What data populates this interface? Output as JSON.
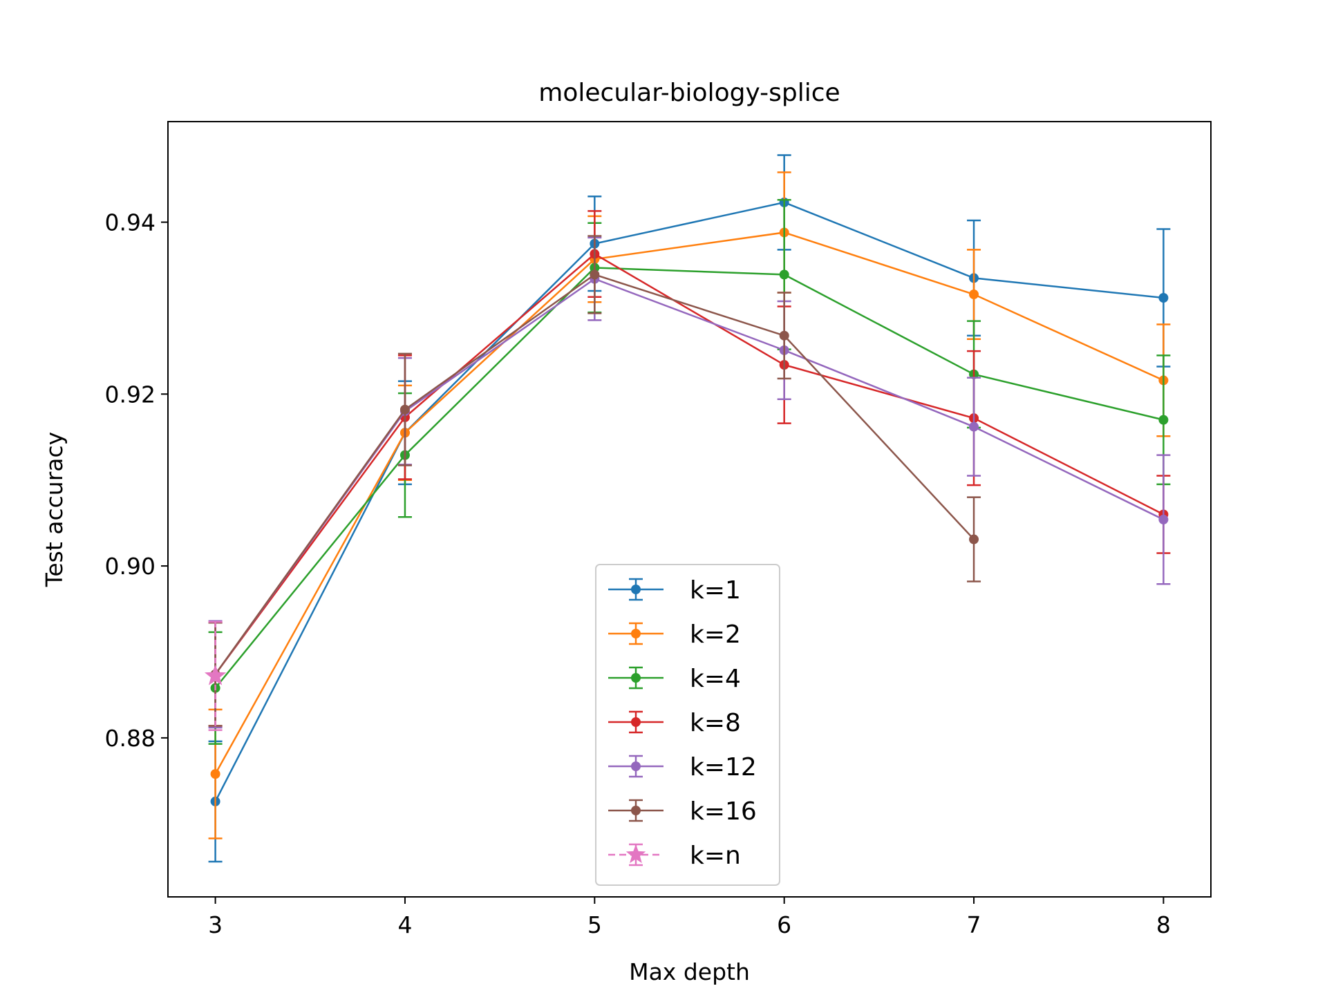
{
  "chart_data": {
    "type": "line",
    "title": "molecular-biology-splice",
    "xlabel": "Max depth",
    "ylabel": "Test accuracy",
    "x": [
      3,
      4,
      5,
      6,
      7,
      8
    ],
    "x_tick_labels": [
      "3",
      "4",
      "5",
      "6",
      "7",
      "8"
    ],
    "xlim": [
      2.75,
      8.25
    ],
    "ylim": [
      0.8615,
      0.9517
    ],
    "y_ticks": [
      0.88,
      0.9,
      0.92,
      0.94
    ],
    "y_tick_labels": [
      "0.88",
      "0.90",
      "0.92",
      "0.94"
    ],
    "grid": false,
    "legend_position": "bottom-center",
    "series": [
      {
        "name": "k=1",
        "color": "#1f77b4",
        "marker": "circle",
        "dashed": false,
        "values": [
          0.8726,
          0.9155,
          0.9375,
          0.9423,
          0.9335,
          0.9312
        ],
        "errors": [
          0.007,
          0.006,
          0.0055,
          0.0055,
          0.0067,
          0.008
        ]
      },
      {
        "name": "k=2",
        "color": "#ff7f0e",
        "marker": "circle",
        "dashed": false,
        "values": [
          0.8758,
          0.9155,
          0.9357,
          0.9388,
          0.9316,
          0.9216
        ],
        "errors": [
          0.0075,
          0.0055,
          0.005,
          0.007,
          0.0052,
          0.0065
        ]
      },
      {
        "name": "k=4",
        "color": "#2ca02c",
        "marker": "circle",
        "dashed": false,
        "values": [
          0.8858,
          0.9129,
          0.9347,
          0.9339,
          0.9223,
          0.917
        ],
        "errors": [
          0.0065,
          0.0072,
          0.0052,
          0.0087,
          0.0062,
          0.0075
        ]
      },
      {
        "name": "k=8",
        "color": "#d62728",
        "marker": "circle",
        "dashed": false,
        "values": [
          0.8874,
          0.9173,
          0.9363,
          0.9234,
          0.9172,
          0.906
        ],
        "errors": [
          0.006,
          0.0072,
          0.005,
          0.0068,
          0.0078,
          0.0045
        ]
      },
      {
        "name": "k=12",
        "color": "#9467bd",
        "marker": "circle",
        "dashed": false,
        "values": [
          0.8874,
          0.918,
          0.9334,
          0.9251,
          0.9162,
          0.9054
        ],
        "errors": [
          0.0062,
          0.0062,
          0.0048,
          0.0057,
          0.0057,
          0.0075
        ]
      },
      {
        "name": "k=16",
        "color": "#8c564b",
        "marker": "circle",
        "dashed": false,
        "values": [
          0.8874,
          0.9182,
          0.9339,
          0.9268,
          0.9031,
          null
        ],
        "errors": [
          0.006,
          0.0065,
          0.0045,
          0.005,
          0.0049,
          null
        ]
      },
      {
        "name": "k=n",
        "color": "#e377c2",
        "marker": "star",
        "dashed": true,
        "values": [
          0.8872,
          null,
          null,
          null,
          null,
          null
        ],
        "errors": [
          0.0063,
          null,
          null,
          null,
          null,
          null
        ]
      }
    ]
  }
}
